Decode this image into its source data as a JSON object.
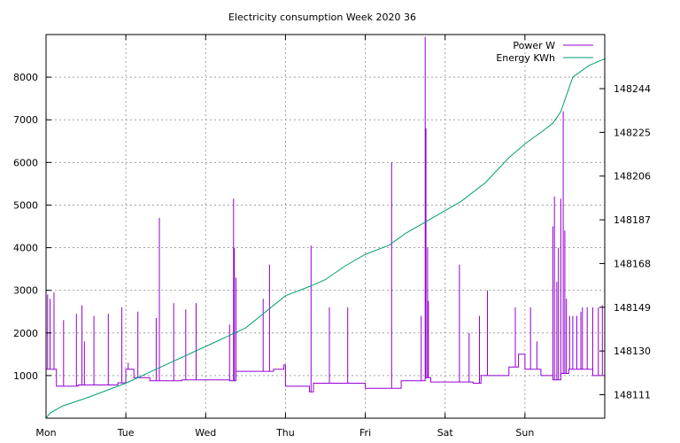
{
  "chart_data": {
    "type": "line",
    "title": "Electricity consumption Week 2020 36",
    "x_ticks": [
      "Mon",
      "Tue",
      "Wed",
      "Thu",
      "Fri",
      "Sat",
      "Sun"
    ],
    "y_left": {
      "ticks": [
        "1000",
        "2000",
        "3000",
        "4000",
        "5000",
        "6000",
        "7000",
        "8000"
      ],
      "range": [
        0,
        9000
      ]
    },
    "y_right": {
      "ticks": [
        "148111",
        "148130",
        "148149",
        "148168",
        "148187",
        "148206",
        "148225",
        "148244"
      ],
      "range": [
        148100.8,
        148267.5
      ]
    },
    "x_range_days": [
      0,
      7
    ],
    "grid": true,
    "legend_position": "top-right",
    "colors": {
      "power": "#9400d3",
      "energy": "#009e73",
      "grid": "#a0a0a0"
    },
    "series": [
      {
        "name": "Power W",
        "axis": "left",
        "base": [
          [
            0,
            1150
          ],
          [
            0.13,
            750
          ],
          [
            0.4,
            780
          ],
          [
            0.9,
            830
          ],
          [
            1.0,
            1150
          ],
          [
            1.1,
            950
          ],
          [
            1.3,
            880
          ],
          [
            1.7,
            900
          ],
          [
            2.0,
            900
          ],
          [
            2.3,
            880
          ],
          [
            2.38,
            1100
          ],
          [
            2.85,
            1150
          ],
          [
            2.98,
            1250
          ],
          [
            3.0,
            750
          ],
          [
            3.3,
            620
          ],
          [
            3.35,
            820
          ],
          [
            3.9,
            820
          ],
          [
            4.0,
            700
          ],
          [
            4.3,
            700
          ],
          [
            4.45,
            880
          ],
          [
            4.75,
            950
          ],
          [
            4.82,
            850
          ],
          [
            5.35,
            820
          ],
          [
            5.45,
            1000
          ],
          [
            5.8,
            1200
          ],
          [
            5.92,
            1500
          ],
          [
            6.0,
            1150
          ],
          [
            6.2,
            1000
          ],
          [
            6.35,
            900
          ],
          [
            6.45,
            1050
          ],
          [
            6.55,
            1150
          ],
          [
            6.85,
            1000
          ],
          [
            7.0,
            1000
          ]
        ],
        "spikes": [
          [
            0.02,
            2900
          ],
          [
            0.05,
            2800
          ],
          [
            0.1,
            2950
          ],
          [
            0.22,
            2300
          ],
          [
            0.38,
            2450
          ],
          [
            0.45,
            2650
          ],
          [
            0.48,
            1800
          ],
          [
            0.6,
            2400
          ],
          [
            0.78,
            2450
          ],
          [
            0.95,
            2600
          ],
          [
            1.03,
            1300
          ],
          [
            1.15,
            2500
          ],
          [
            1.38,
            2350
          ],
          [
            1.42,
            4700
          ],
          [
            1.6,
            2700
          ],
          [
            1.75,
            2550
          ],
          [
            1.88,
            2700
          ],
          [
            2.3,
            2200
          ],
          [
            2.35,
            5150
          ],
          [
            2.36,
            4000
          ],
          [
            2.38,
            3300
          ],
          [
            2.72,
            2800
          ],
          [
            2.8,
            3600
          ],
          [
            3.32,
            4050
          ],
          [
            3.55,
            2600
          ],
          [
            3.78,
            2600
          ],
          [
            4.33,
            6000
          ],
          [
            4.7,
            2400
          ],
          [
            4.75,
            8950
          ],
          [
            4.76,
            6800
          ],
          [
            4.78,
            4000
          ],
          [
            4.79,
            2750
          ],
          [
            5.18,
            3600
          ],
          [
            5.3,
            2000
          ],
          [
            5.43,
            2400
          ],
          [
            5.53,
            3000
          ],
          [
            5.88,
            2600
          ],
          [
            6.07,
            2600
          ],
          [
            6.15,
            1800
          ],
          [
            6.35,
            4500
          ],
          [
            6.37,
            5200
          ],
          [
            6.4,
            3200
          ],
          [
            6.42,
            4000
          ],
          [
            6.45,
            5150
          ],
          [
            6.48,
            7200
          ],
          [
            6.5,
            4400
          ],
          [
            6.52,
            2800
          ],
          [
            6.56,
            2400
          ],
          [
            6.6,
            2400
          ],
          [
            6.65,
            2400
          ],
          [
            6.7,
            2500
          ],
          [
            6.72,
            2600
          ],
          [
            6.78,
            2600
          ],
          [
            6.85,
            2600
          ],
          [
            6.92,
            2600
          ],
          [
            6.97,
            2650
          ]
        ]
      },
      {
        "name": "Energy KWh",
        "axis": "right",
        "points": [
          [
            0,
            148100.8
          ],
          [
            0.05,
            148103
          ],
          [
            0.2,
            148106
          ],
          [
            0.5,
            148109.5
          ],
          [
            1.0,
            148116
          ],
          [
            1.5,
            148124
          ],
          [
            2.0,
            148132
          ],
          [
            2.5,
            148140
          ],
          [
            3.0,
            148154
          ],
          [
            3.3,
            148158
          ],
          [
            3.5,
            148161
          ],
          [
            3.75,
            148167
          ],
          [
            4.0,
            148172
          ],
          [
            4.3,
            148176
          ],
          [
            4.5,
            148181
          ],
          [
            4.75,
            148186
          ],
          [
            5.0,
            148191
          ],
          [
            5.2,
            148195
          ],
          [
            5.5,
            148203
          ],
          [
            5.8,
            148214
          ],
          [
            6.0,
            148220
          ],
          [
            6.2,
            148225
          ],
          [
            6.35,
            148229
          ],
          [
            6.45,
            148234
          ],
          [
            6.53,
            148242
          ],
          [
            6.6,
            148249
          ],
          [
            6.8,
            148254
          ],
          [
            7.0,
            148257
          ]
        ]
      }
    ]
  }
}
